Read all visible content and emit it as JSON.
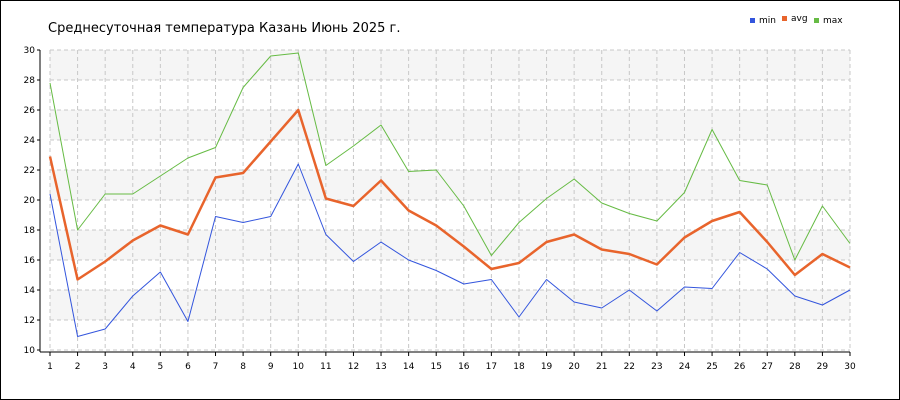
{
  "chart_data": {
    "type": "line",
    "title": "Среднесуточная температура Казань  Июнь 2025 г.",
    "xlabel": "",
    "ylabel": "",
    "x": [
      1,
      2,
      3,
      4,
      5,
      6,
      7,
      8,
      9,
      10,
      11,
      12,
      13,
      14,
      15,
      16,
      17,
      18,
      19,
      20,
      21,
      22,
      23,
      24,
      25,
      26,
      27,
      28,
      29,
      30
    ],
    "x_ticks": [
      "1",
      "2",
      "3",
      "4",
      "5",
      "6",
      "7",
      "8",
      "9",
      "10",
      "11",
      "12",
      "13",
      "14",
      "15",
      "16",
      "17",
      "18",
      "19",
      "20",
      "21",
      "22",
      "23",
      "24",
      "25",
      "26",
      "27",
      "28",
      "29",
      "30"
    ],
    "ylim": [
      10,
      30
    ],
    "y_ticks": [
      "10",
      "12",
      "14",
      "16",
      "18",
      "20",
      "22",
      "24",
      "26",
      "28",
      "30"
    ],
    "grid": true,
    "legend_position": "top-right",
    "series": [
      {
        "name": "min",
        "color": "#3355dd",
        "values": [
          20.4,
          10.9,
          11.4,
          13.6,
          15.2,
          11.9,
          18.9,
          18.5,
          18.9,
          22.4,
          17.7,
          15.9,
          17.2,
          16.0,
          15.3,
          14.4,
          14.7,
          12.2,
          14.7,
          13.2,
          12.8,
          14.0,
          12.6,
          14.2,
          14.1,
          16.5,
          15.4,
          13.6,
          13.0,
          14.0
        ]
      },
      {
        "name": "avg",
        "color": "#e8642c",
        "values": [
          22.9,
          14.7,
          15.9,
          17.3,
          18.3,
          17.7,
          21.5,
          21.8,
          23.9,
          26.0,
          20.1,
          19.6,
          21.3,
          19.3,
          18.3,
          16.9,
          15.4,
          15.8,
          17.2,
          17.7,
          16.7,
          16.4,
          15.7,
          17.5,
          18.6,
          19.2,
          17.2,
          15.0,
          16.4,
          15.5
        ]
      },
      {
        "name": "max",
        "color": "#66bb44",
        "values": [
          27.8,
          18.0,
          20.4,
          20.4,
          21.6,
          22.8,
          23.5,
          27.5,
          29.6,
          29.8,
          22.3,
          23.6,
          25.0,
          21.9,
          22.0,
          19.6,
          16.3,
          18.5,
          20.1,
          21.4,
          19.8,
          19.1,
          18.6,
          20.5,
          24.7,
          21.3,
          21.0,
          16.0,
          19.6,
          17.1
        ]
      }
    ]
  }
}
